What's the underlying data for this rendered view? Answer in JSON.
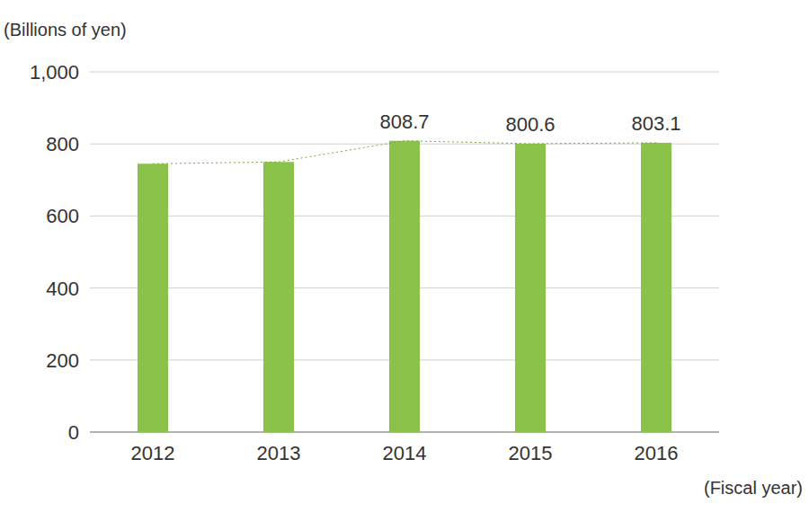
{
  "chart_data": {
    "type": "bar",
    "y_label": "(Billions of yen)",
    "x_label": "(Fiscal year)",
    "categories": [
      "2012",
      "2013",
      "2014",
      "2015",
      "2016"
    ],
    "values": [
      745,
      750,
      808.7,
      800.6,
      803.1
    ],
    "value_labels": [
      null,
      null,
      "808.7",
      "800.6",
      "803.1"
    ],
    "data_labels": true,
    "color": "#8bc34a",
    "line_style": "dotted",
    "ylim": [
      0,
      1000
    ],
    "yticks": [
      0,
      200,
      400,
      600,
      800,
      {
        "value": 1000,
        "label": "1,000"
      }
    ],
    "grid": true
  }
}
